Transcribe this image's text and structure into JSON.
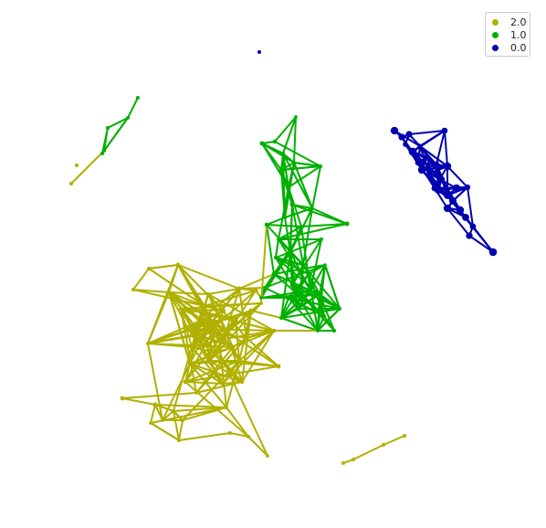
{
  "colors": {
    "community_2": "#b0b000",
    "community_1": "#00b000",
    "community_0": "#0000b0"
  },
  "legend": [
    {
      "label": "2.0",
      "color": "#b0b000"
    },
    {
      "label": "1.0",
      "color": "#00b000"
    },
    {
      "label": "0.0",
      "color": "#0000b0"
    }
  ]
}
